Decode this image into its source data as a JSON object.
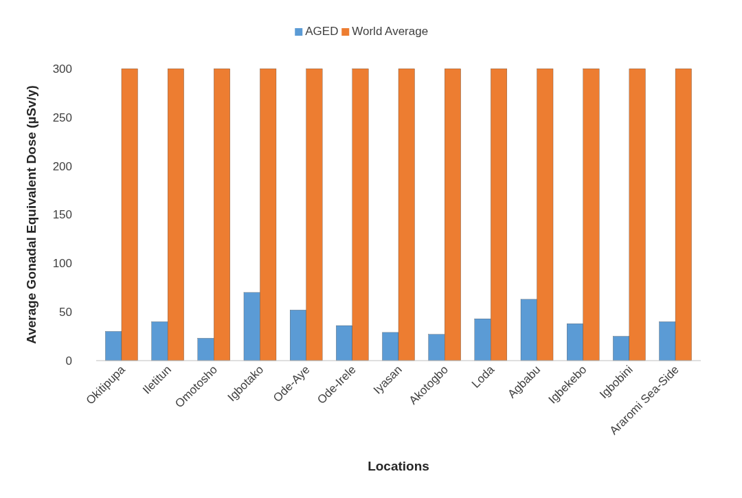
{
  "chart_data": {
    "type": "bar",
    "xlabel": "Locations",
    "ylabel": "Average Gonadal Equivalent Dose (µSv/y)",
    "categories": [
      "Okitipupa",
      "Iletitun",
      "Omotosho",
      "Igbotako",
      "Ode-Aye",
      "Ode-Irele",
      "Iyasan",
      "Akotogbo",
      "Loda",
      "Agbabu",
      "Igbekebo",
      "Igbobini",
      "Araromi Sea-Side"
    ],
    "series": [
      {
        "name": "AGED",
        "color": "#5b9bd5",
        "values": [
          30,
          40,
          23,
          70,
          52,
          36,
          29,
          27,
          43,
          63,
          38,
          25,
          40
        ]
      },
      {
        "name": "World Average",
        "color": "#ed7d31",
        "values": [
          300,
          300,
          300,
          300,
          300,
          300,
          300,
          300,
          300,
          300,
          300,
          300,
          300
        ]
      }
    ],
    "ylim": [
      0,
      300
    ],
    "yticks": [
      0,
      50,
      100,
      150,
      200,
      250,
      300
    ],
    "grid": false,
    "legend": "top"
  }
}
